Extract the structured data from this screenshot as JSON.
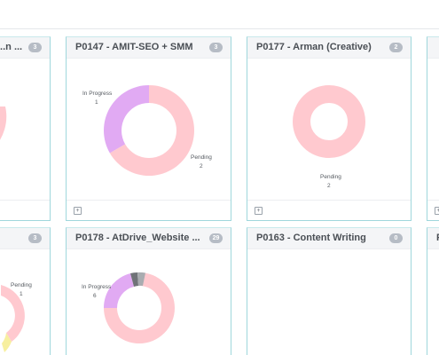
{
  "cards": {
    "c1": {
      "title": "...n ...",
      "badge": "3"
    },
    "c2": {
      "title": "P0147 - AMIT-SEO + SMM",
      "badge": "3",
      "chart_data": {
        "type": "pie",
        "categories": [
          "In Progress",
          "Pending"
        ],
        "values": [
          1,
          2
        ],
        "colors": [
          "#e1aaf3",
          "#ffc9cf"
        ]
      },
      "labels": {
        "in_progress": "In Progress",
        "in_progress_val": "1",
        "pending": "Pending",
        "pending_val": "2"
      }
    },
    "c3": {
      "title": "P0177 - Arman (Creative)",
      "badge": "2",
      "chart_data": {
        "type": "pie",
        "categories": [
          "Pending"
        ],
        "values": [
          2
        ],
        "colors": [
          "#ffc9cf"
        ]
      },
      "labels": {
        "pending": "Pending",
        "pending_val": "2"
      }
    },
    "c5": {
      "title": "",
      "badge": "3",
      "labels": {
        "pending": "Pending",
        "pending_val": "1"
      }
    },
    "c6": {
      "title": "P0178 - AtDrive_Website ...",
      "badge": "29",
      "labels": {
        "in_progress": "In Progress",
        "in_progress_val": "6"
      }
    },
    "c7": {
      "title": "P0163 - Content Writing",
      "badge": "0"
    },
    "c8": {
      "title": "P"
    }
  },
  "colors": {
    "pending": "#ffc9cf",
    "in_progress": "#e1aaf3",
    "dark_gray": "#707378",
    "light_gray": "#a9acb0",
    "yellow": "#f7ef9f",
    "card_border": "#9fd7dc"
  },
  "icons": {
    "footer_add": "plus-square-icon"
  }
}
